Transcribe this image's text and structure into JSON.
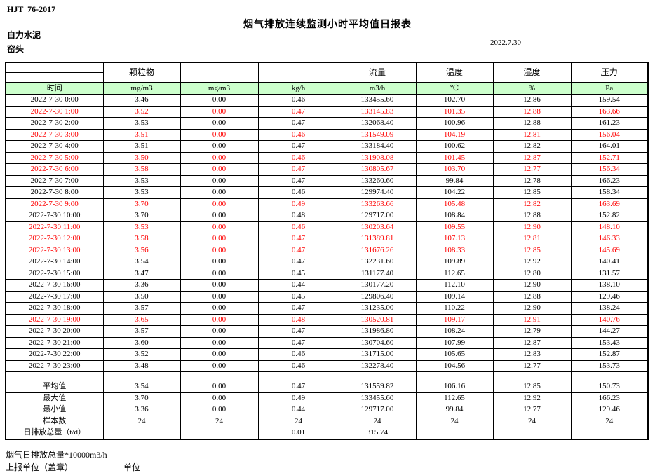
{
  "header": {
    "standard": "HJT  76-2017",
    "title": "烟气排放连续监测小时平均值日报表",
    "company": "自力水泥",
    "station": "窑头",
    "date": "2022.7.30"
  },
  "table": {
    "param_headers": [
      "",
      "颗粒物",
      "",
      "",
      "流量",
      "温度",
      "湿度",
      "压力"
    ],
    "unit_headers": [
      "时间",
      "mg/m3",
      "mg/m3",
      "kg/h",
      "m3/h",
      "℃",
      "%",
      "Pa"
    ],
    "rows": [
      {
        "time": "2022-7-30 0:00",
        "values": [
          "3.46",
          "0.00",
          "0.46",
          "133455.60",
          "102.70",
          "12.86",
          "159.54"
        ],
        "red": false
      },
      {
        "time": "2022-7-30 1:00",
        "values": [
          "3.52",
          "0.00",
          "0.47",
          "133145.83",
          "101.35",
          "12.88",
          "163.66"
        ],
        "red": true
      },
      {
        "time": "2022-7-30 2:00",
        "values": [
          "3.53",
          "0.00",
          "0.47",
          "132068.40",
          "100.96",
          "12.88",
          "161.23"
        ],
        "red": false
      },
      {
        "time": "2022-7-30 3:00",
        "values": [
          "3.51",
          "0.00",
          "0.46",
          "131549.09",
          "104.19",
          "12.81",
          "156.04"
        ],
        "red": true
      },
      {
        "time": "2022-7-30 4:00",
        "values": [
          "3.51",
          "0.00",
          "0.47",
          "133184.40",
          "100.62",
          "12.82",
          "164.01"
        ],
        "red": false
      },
      {
        "time": "2022-7-30 5:00",
        "values": [
          "3.50",
          "0.00",
          "0.46",
          "131908.08",
          "101.45",
          "12.87",
          "152.71"
        ],
        "red": true
      },
      {
        "time": "2022-7-30 6:00",
        "values": [
          "3.58",
          "0.00",
          "0.47",
          "130805.67",
          "103.70",
          "12.77",
          "156.34"
        ],
        "red": true
      },
      {
        "time": "2022-7-30 7:00",
        "values": [
          "3.53",
          "0.00",
          "0.47",
          "133260.60",
          "99.84",
          "12.78",
          "166.23"
        ],
        "red": false
      },
      {
        "time": "2022-7-30 8:00",
        "values": [
          "3.53",
          "0.00",
          "0.46",
          "129974.40",
          "104.22",
          "12.85",
          "158.34"
        ],
        "red": false
      },
      {
        "time": "2022-7-30 9:00",
        "values": [
          "3.70",
          "0.00",
          "0.49",
          "133263.66",
          "105.48",
          "12.82",
          "163.69"
        ],
        "red": true
      },
      {
        "time": "2022-7-30 10:00",
        "values": [
          "3.70",
          "0.00",
          "0.48",
          "129717.00",
          "108.84",
          "12.88",
          "152.82"
        ],
        "red": false
      },
      {
        "time": "2022-7-30 11:00",
        "values": [
          "3.53",
          "0.00",
          "0.46",
          "130203.64",
          "109.55",
          "12.90",
          "148.10"
        ],
        "red": true
      },
      {
        "time": "2022-7-30 12:00",
        "values": [
          "3.58",
          "0.00",
          "0.47",
          "131389.81",
          "107.13",
          "12.81",
          "146.33"
        ],
        "red": true
      },
      {
        "time": "2022-7-30 13:00",
        "values": [
          "3.56",
          "0.00",
          "0.47",
          "131676.26",
          "108.33",
          "12.85",
          "145.69"
        ],
        "red": true
      },
      {
        "time": "2022-7-30 14:00",
        "values": [
          "3.54",
          "0.00",
          "0.47",
          "132231.60",
          "109.89",
          "12.92",
          "140.41"
        ],
        "red": false
      },
      {
        "time": "2022-7-30 15:00",
        "values": [
          "3.47",
          "0.00",
          "0.45",
          "131177.40",
          "112.65",
          "12.80",
          "131.57"
        ],
        "red": false
      },
      {
        "time": "2022-7-30 16:00",
        "values": [
          "3.36",
          "0.00",
          "0.44",
          "130177.20",
          "112.10",
          "12.90",
          "138.10"
        ],
        "red": false
      },
      {
        "time": "2022-7-30 17:00",
        "values": [
          "3.50",
          "0.00",
          "0.45",
          "129806.40",
          "109.14",
          "12.88",
          "129.46"
        ],
        "red": false
      },
      {
        "time": "2022-7-30 18:00",
        "values": [
          "3.57",
          "0.00",
          "0.47",
          "131235.00",
          "110.22",
          "12.90",
          "138.24"
        ],
        "red": false
      },
      {
        "time": "2022-7-30 19:00",
        "values": [
          "3.65",
          "0.00",
          "0.48",
          "130520.81",
          "109.17",
          "12.91",
          "140.76"
        ],
        "red": true
      },
      {
        "time": "2022-7-30 20:00",
        "values": [
          "3.57",
          "0.00",
          "0.47",
          "131986.80",
          "108.24",
          "12.79",
          "144.27"
        ],
        "red": false
      },
      {
        "time": "2022-7-30 21:00",
        "values": [
          "3.60",
          "0.00",
          "0.47",
          "130704.60",
          "107.99",
          "12.87",
          "153.43"
        ],
        "red": false
      },
      {
        "time": "2022-7-30 22:00",
        "values": [
          "3.52",
          "0.00",
          "0.46",
          "131715.00",
          "105.65",
          "12.83",
          "152.87"
        ],
        "red": false
      },
      {
        "time": "2022-7-30 23:00",
        "values": [
          "3.48",
          "0.00",
          "0.46",
          "132278.40",
          "104.56",
          "12.77",
          "153.73"
        ],
        "red": false
      }
    ],
    "summary": [
      {
        "label": "平均值",
        "values": [
          "3.54",
          "0.00",
          "0.47",
          "131559.82",
          "106.16",
          "12.85",
          "150.73"
        ]
      },
      {
        "label": "最大值",
        "values": [
          "3.70",
          "0.00",
          "0.49",
          "133455.60",
          "112.65",
          "12.92",
          "166.23"
        ]
      },
      {
        "label": "最小值",
        "values": [
          "3.36",
          "0.00",
          "0.44",
          "129717.00",
          "99.84",
          "12.77",
          "129.46"
        ]
      },
      {
        "label": "样本数",
        "values": [
          "24",
          "24",
          "24",
          "24",
          "24",
          "24",
          "24"
        ]
      },
      {
        "label": "日排放总量（t/d）",
        "values": [
          "",
          "",
          "0.01",
          "315.74",
          "",
          "",
          ""
        ]
      }
    ]
  },
  "footer": {
    "note": "烟气日排放总量*10000m3/h",
    "report_unit_label": "上报单位（盖章）",
    "unit_label": "单位"
  },
  "colors": {
    "header_green": "#ccffcc",
    "alert_red": "#ff0000",
    "text_black": "#000000"
  }
}
